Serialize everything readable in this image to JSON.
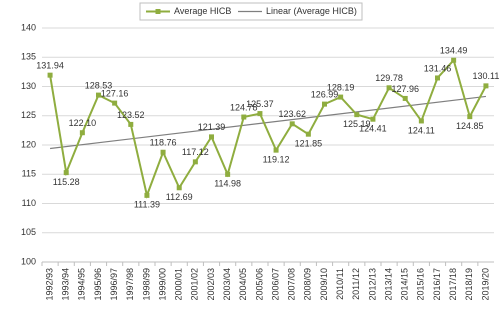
{
  "chart_data": {
    "type": "line",
    "categories": [
      "1992/93",
      "1993/94",
      "1994/95",
      "1995/96",
      "1996/97",
      "1997/98",
      "1998/99",
      "1999/00",
      "2000/01",
      "2001/02",
      "2002/03",
      "2003/04",
      "2004/05",
      "2005/06",
      "2006/07",
      "2007/08",
      "2008/09",
      "2009/10",
      "2010/11",
      "2011/12",
      "2012/13",
      "2013/14",
      "2014/15",
      "2015/16",
      "2016/17",
      "2017/18",
      "2018/19",
      "2019/20"
    ],
    "series": [
      {
        "name": "Average HICB",
        "color": "#8fad3f",
        "values": [
          131.94,
          115.28,
          122.1,
          128.53,
          127.16,
          123.52,
          111.39,
          118.76,
          112.69,
          117.12,
          121.39,
          114.98,
          124.78,
          125.37,
          119.12,
          123.62,
          121.85,
          126.99,
          128.19,
          125.19,
          124.41,
          129.78,
          127.96,
          124.11,
          131.46,
          134.49,
          124.85,
          130.11
        ],
        "value_labels": [
          "131.94",
          "115.28",
          "122.10",
          "128.53",
          "127.16",
          "123.52",
          "111.39",
          "118.76",
          "112.69",
          "117.12",
          "121.39",
          "114.98",
          "124.78",
          "125.37",
          "119.12",
          "123.62",
          "121.85",
          "126.99",
          "128.19",
          "125.19",
          "124.41",
          "129.78",
          "127.96",
          "124.11",
          "131.46",
          "134.49",
          "124.85",
          "130.11"
        ]
      }
    ],
    "trendline": {
      "name": "Linear (Average HICB)",
      "color": "#7f7f7f",
      "values": [
        119.4,
        128.3
      ]
    },
    "ylim": [
      100,
      140
    ],
    "yticks": [
      100,
      105,
      110,
      115,
      120,
      125,
      130,
      135,
      140
    ],
    "grid": true
  }
}
